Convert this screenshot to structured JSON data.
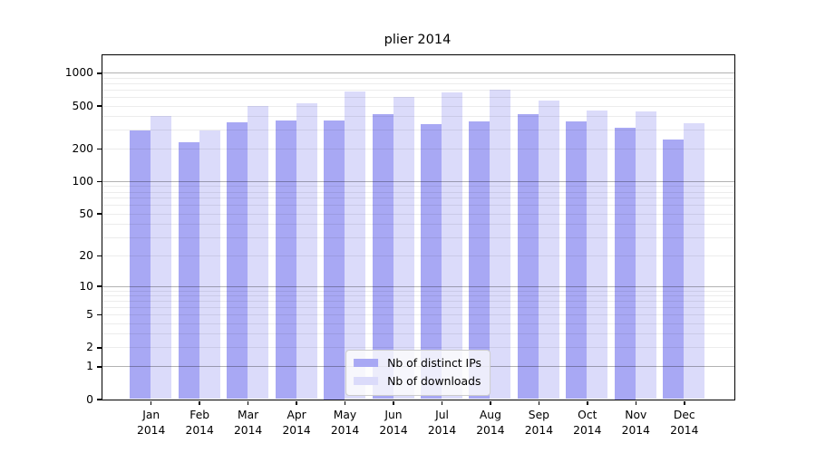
{
  "chart_data": {
    "type": "bar",
    "title": "plier 2014",
    "categories": [
      [
        "Jan",
        "2014"
      ],
      [
        "Feb",
        "2014"
      ],
      [
        "Mar",
        "2014"
      ],
      [
        "Apr",
        "2014"
      ],
      [
        "May",
        "2014"
      ],
      [
        "Jun",
        "2014"
      ],
      [
        "Jul",
        "2014"
      ],
      [
        "Aug",
        "2014"
      ],
      [
        "Sep",
        "2014"
      ],
      [
        "Oct",
        "2014"
      ],
      [
        "Nov",
        "2014"
      ],
      [
        "Dec",
        "2014"
      ]
    ],
    "series": [
      {
        "name": "Nb of distinct IPs",
        "color": "#a8a8f4",
        "values": [
          293,
          230,
          350,
          367,
          368,
          416,
          339,
          355,
          420,
          360,
          312,
          245
        ]
      },
      {
        "name": "Nb of downloads",
        "color": "#dbdbfa",
        "values": [
          403,
          293,
          494,
          527,
          672,
          599,
          665,
          698,
          555,
          449,
          444,
          343
        ]
      }
    ],
    "yaxis": {
      "scale": "log(1+x)",
      "tick_labels": [
        "0",
        "1",
        "2",
        "5",
        "10",
        "20",
        "50",
        "100",
        "200",
        "500",
        "1000"
      ],
      "tick_values": [
        0,
        1,
        2,
        5,
        10,
        20,
        50,
        100,
        200,
        500,
        1000
      ],
      "major_gridlines": [
        1,
        10,
        100,
        1000
      ],
      "ymin": 0,
      "ymax": 1470,
      "grid": true
    },
    "legend": {
      "location": "lower center"
    },
    "background_color": "#ffffff"
  }
}
